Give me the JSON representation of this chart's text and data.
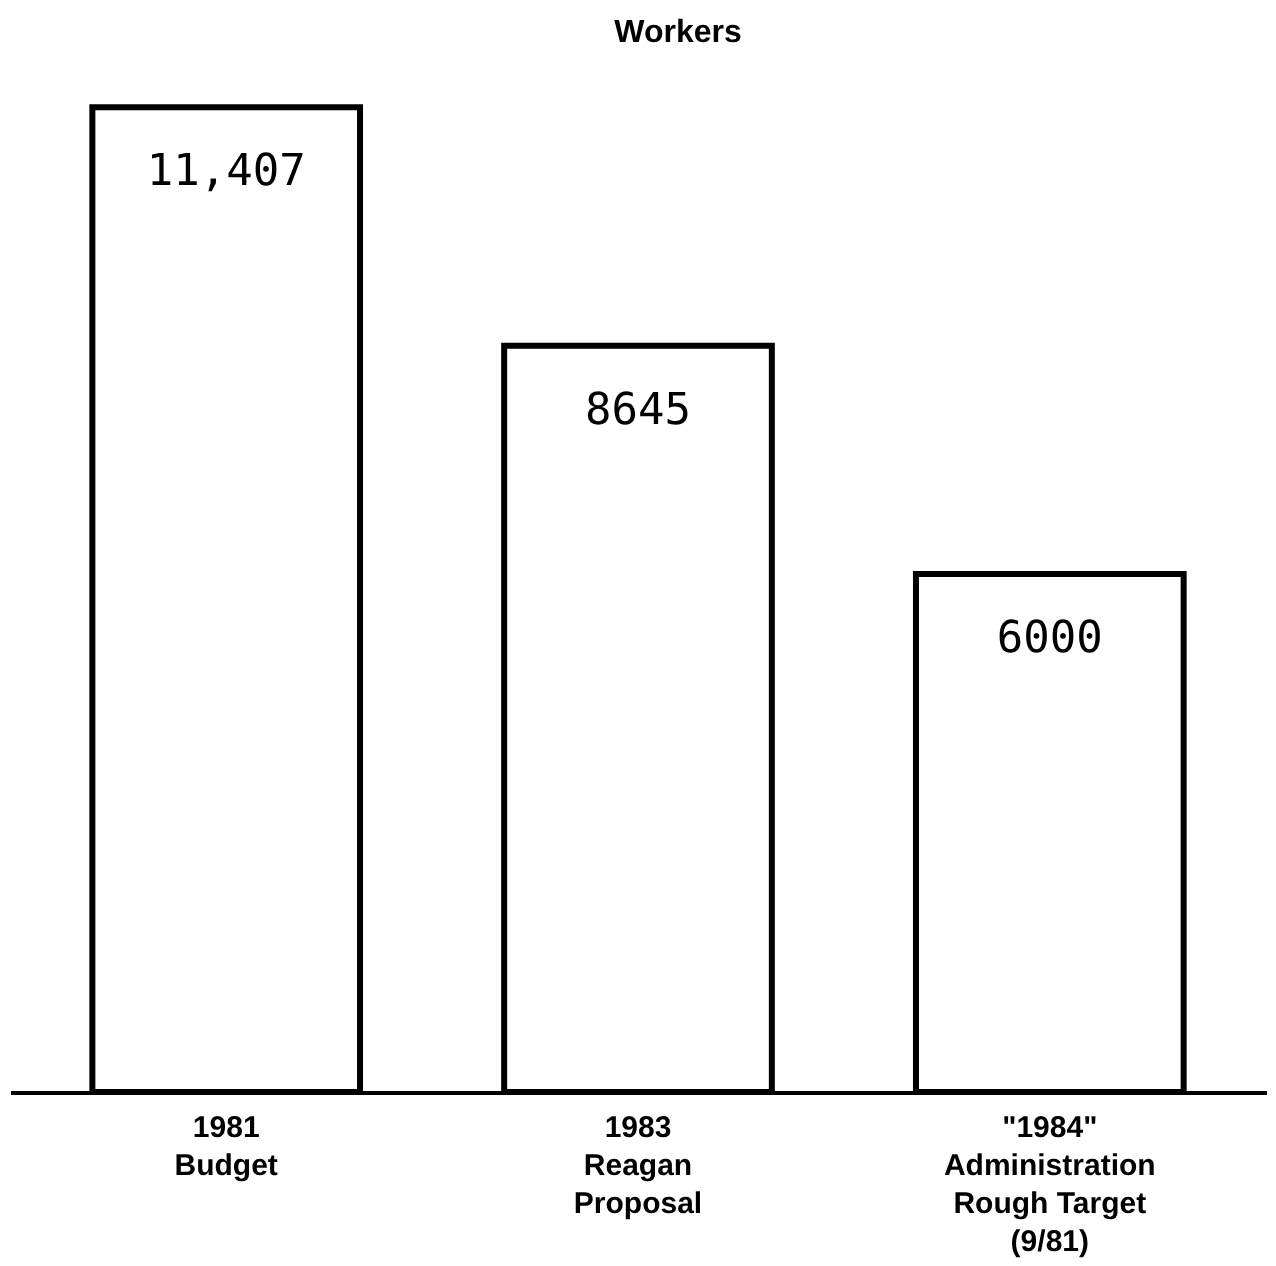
{
  "chart_data": {
    "type": "bar",
    "title": "Workers",
    "categories": [
      "1981\nBudget",
      "1983\nReagan\nProposal",
      "\"1984\"\nAdministration\nRough Target\n(9/81)"
    ],
    "values": [
      11407,
      8645,
      6000
    ],
    "value_labels": [
      "11,407",
      "8645",
      "6000"
    ],
    "color": "#ffffff"
  }
}
